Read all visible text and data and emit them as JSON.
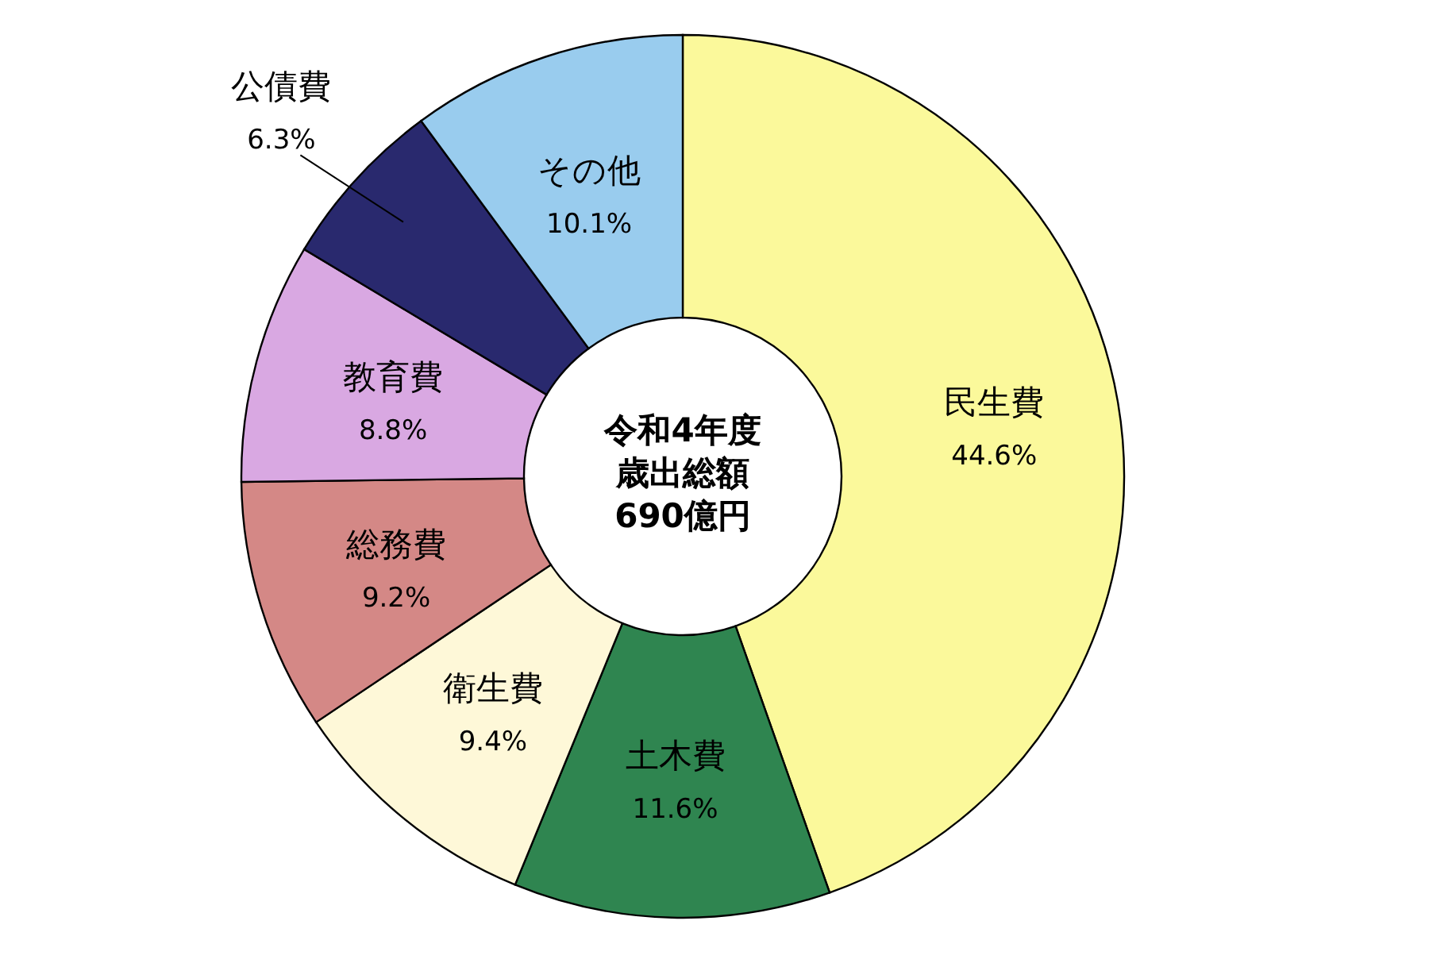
{
  "chart_data": {
    "type": "donut",
    "title": "令和4年度歳出総額",
    "subtitle": "690億円",
    "categories": [
      "民生費",
      "土木費",
      "衛生費",
      "総務費",
      "教育費",
      "公債費",
      "その他"
    ],
    "values": [
      44.6,
      11.6,
      9.4,
      9.2,
      8.8,
      6.3,
      10.1
    ],
    "colors": [
      "#fbf99b",
      "#2f8550",
      "#fef8d8",
      "#d48886",
      "#d9a8e2",
      "#29296e",
      "#99ccee"
    ],
    "value_labels": [
      "44.6%",
      "11.6%",
      "9.4%",
      "9.2%",
      "8.8%",
      "6.3%",
      "10.1%"
    ]
  }
}
